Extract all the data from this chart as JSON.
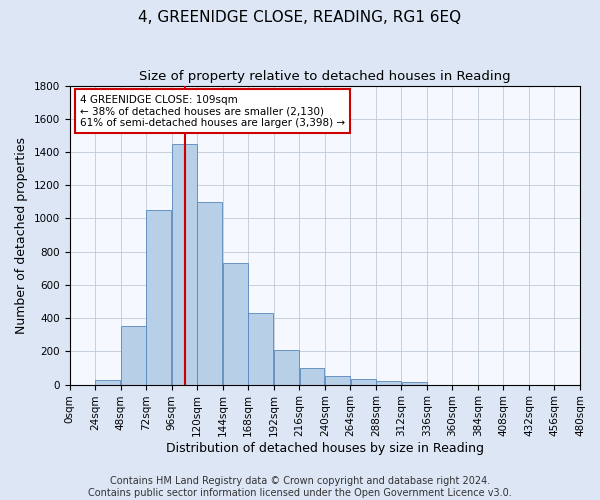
{
  "title": "4, GREENIDGE CLOSE, READING, RG1 6EQ",
  "subtitle": "Size of property relative to detached houses in Reading",
  "xlabel": "Distribution of detached houses by size in Reading",
  "ylabel": "Number of detached properties",
  "bin_edges": [
    0,
    24,
    48,
    72,
    96,
    120,
    144,
    168,
    192,
    216,
    240,
    264,
    288,
    312,
    336,
    360,
    384,
    408,
    432,
    456,
    480
  ],
  "bar_heights": [
    0,
    30,
    350,
    1050,
    1450,
    1100,
    730,
    430,
    210,
    100,
    50,
    35,
    20,
    15,
    0,
    0,
    0,
    0,
    0,
    0
  ],
  "bar_color": "#b8cfe8",
  "bar_edge_color": "#5588bb",
  "property_size": 109,
  "property_line_color": "#cc0000",
  "annotation_line1": "4 GREENIDGE CLOSE: 109sqm",
  "annotation_line2": "← 38% of detached houses are smaller (2,130)",
  "annotation_line3": "61% of semi-detached houses are larger (3,398) →",
  "annotation_box_color": "#ffffff",
  "annotation_box_edge_color": "#cc0000",
  "ylim": [
    0,
    1800
  ],
  "yticks": [
    0,
    200,
    400,
    600,
    800,
    1000,
    1200,
    1400,
    1600,
    1800
  ],
  "tick_labels": [
    "0sqm",
    "24sqm",
    "48sqm",
    "72sqm",
    "96sqm",
    "120sqm",
    "144sqm",
    "168sqm",
    "192sqm",
    "216sqm",
    "240sqm",
    "264sqm",
    "288sqm",
    "312sqm",
    "336sqm",
    "360sqm",
    "384sqm",
    "408sqm",
    "432sqm",
    "456sqm",
    "480sqm"
  ],
  "footer_line1": "Contains HM Land Registry data © Crown copyright and database right 2024.",
  "footer_line2": "Contains public sector information licensed under the Open Government Licence v3.0.",
  "background_color": "#dce6f5",
  "plot_bg_color": "#f5f8ff",
  "grid_color": "#c0cad8",
  "title_fontsize": 11,
  "subtitle_fontsize": 9.5,
  "axis_label_fontsize": 9,
  "tick_fontsize": 7.5,
  "footer_fontsize": 7
}
